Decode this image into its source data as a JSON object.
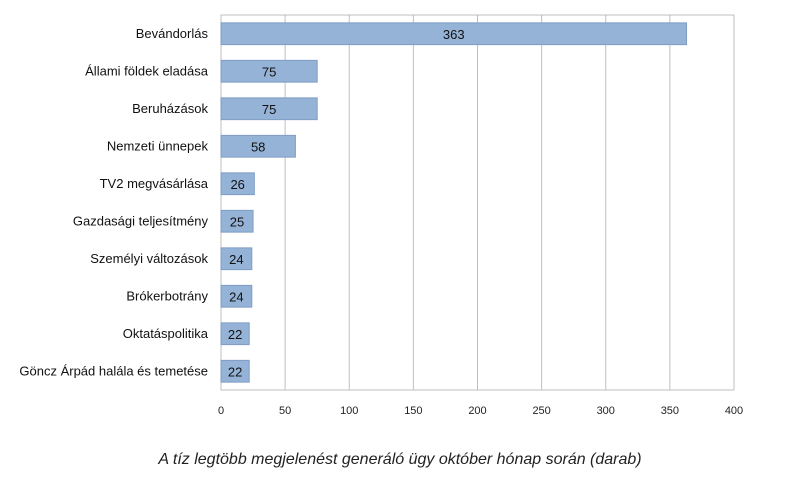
{
  "chart_data": {
    "type": "bar",
    "orientation": "horizontal",
    "categories": [
      "Bevándorlás",
      "Állami földek eladása",
      "Beruházások",
      "Nemzeti ünnepek",
      "TV2 megvásárlása",
      "Gazdasági teljesítmény",
      "Személyi változások",
      "Brókerbotrány",
      "Oktatáspolitika",
      "Göncz Árpád halála és temetése"
    ],
    "values": [
      363,
      75,
      75,
      58,
      26,
      25,
      24,
      24,
      22,
      22
    ],
    "data_labels": [
      "363",
      "75",
      "75",
      "58",
      "26",
      "25",
      "24",
      "24",
      "22",
      "22"
    ],
    "xlim": [
      0,
      400
    ],
    "xticks": [
      0,
      50,
      100,
      150,
      200,
      250,
      300,
      350,
      400
    ],
    "grid": "vertical",
    "legend": "none",
    "bar_color": "#95B3D7",
    "bar_edge_color": "#7F9DC4",
    "caption": "A tíz legtöbb megjelenést generáló ügy október hónap során (darab)"
  }
}
